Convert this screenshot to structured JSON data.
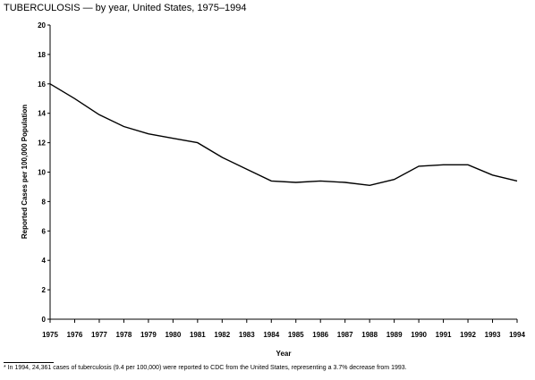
{
  "chart_data": {
    "type": "line",
    "title": "TUBERCULOSIS — by year, United States, 1975–1994",
    "xlabel": "Year",
    "ylabel": "Reported Cases per 100,000 Population",
    "x": [
      1975,
      1976,
      1977,
      1978,
      1979,
      1980,
      1981,
      1982,
      1983,
      1984,
      1985,
      1986,
      1987,
      1988,
      1989,
      1990,
      1991,
      1992,
      1993,
      1994
    ],
    "series": [
      {
        "values": [
          16.0,
          15.0,
          13.9,
          13.1,
          12.6,
          12.3,
          12.0,
          11.0,
          10.2,
          9.4,
          9.3,
          9.4,
          9.3,
          9.1,
          9.5,
          10.4,
          10.5,
          10.5,
          9.8,
          9.4
        ]
      }
    ],
    "xticks": [
      "1975",
      "1976",
      "1977",
      "1978",
      "1979",
      "1980",
      "1981",
      "1982",
      "1983",
      "1984",
      "1985",
      "1986",
      "1987",
      "1988",
      "1989",
      "1990",
      "1991",
      "1992",
      "1993",
      "1994"
    ],
    "yticks": [
      "0",
      "2",
      "4",
      "6",
      "8",
      "10",
      "12",
      "14",
      "16",
      "18",
      "20"
    ],
    "ylim": [
      0,
      20
    ],
    "grid": false,
    "legend": "none",
    "line_color": "#000000"
  },
  "footnote": "* In 1994, 24,361 cases of tuberculosis (9.4 per 100,000) were reported to CDC from the United States, representing a 3.7% decrease from 1993."
}
